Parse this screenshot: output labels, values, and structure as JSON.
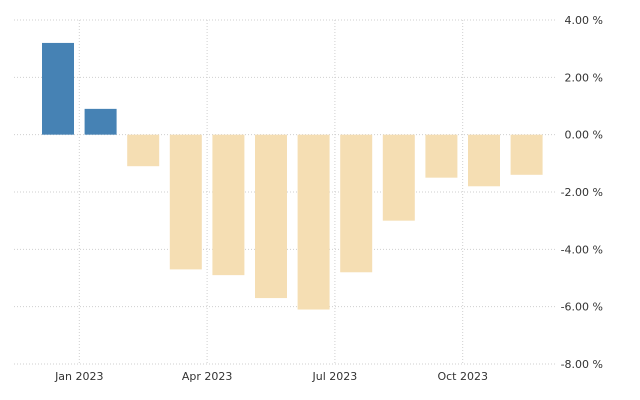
{
  "chart_data": {
    "type": "bar",
    "categories": [
      "2022-12",
      "2023-01",
      "2023-02",
      "2023-03",
      "2023-04",
      "2023-05",
      "2023-06",
      "2023-07",
      "2023-08",
      "2023-09",
      "2023-10",
      "2023-11"
    ],
    "values": [
      3.2,
      0.9,
      -1.1,
      -4.7,
      -4.9,
      -5.7,
      -6.1,
      -4.8,
      -3.0,
      -1.5,
      -1.8,
      -1.4
    ],
    "x_ticks": [
      "Jan 2023",
      "Apr 2023",
      "Jul 2023",
      "Oct 2023"
    ],
    "y_ticks": [
      "4.00 %",
      "2.00 %",
      "0.00 %",
      "-2.00 %",
      "-4.00 %",
      "-6.00 %",
      "-8.00 %"
    ],
    "ylim": [
      -8,
      4
    ],
    "grid": true,
    "y_axis_position": "right",
    "colors": {
      "positive": "#4682b4",
      "negative": "#f5deb3"
    },
    "title": "",
    "xlabel": "",
    "ylabel": ""
  }
}
